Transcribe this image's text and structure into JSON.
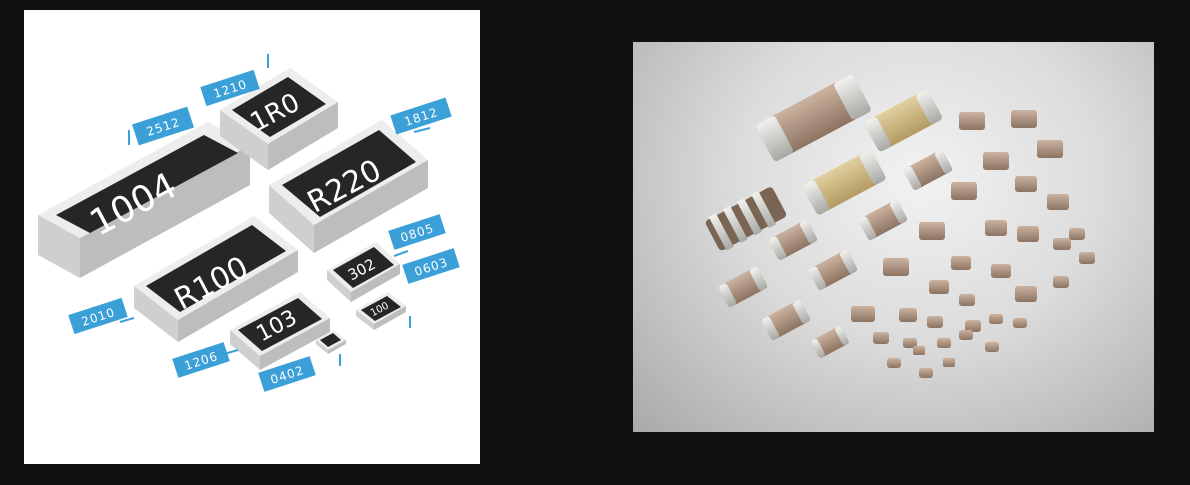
{
  "left_image": {
    "chips": [
      {
        "marking": "1004"
      },
      {
        "marking": "1R0"
      },
      {
        "marking": "R220"
      },
      {
        "marking": "R100"
      },
      {
        "marking": "302"
      },
      {
        "marking": "103"
      },
      {
        "marking": "100"
      }
    ],
    "size_tags": [
      "2512",
      "1210",
      "1812",
      "0805",
      "0603",
      "2010",
      "1206",
      "0402"
    ]
  },
  "colors": {
    "page_background": "#111111",
    "tag_blue": "#3ba0d8",
    "chip_body": "#2a2a2a",
    "chip_ceramic": "#e4e4e4",
    "capacitor_body": "#b59b86"
  }
}
